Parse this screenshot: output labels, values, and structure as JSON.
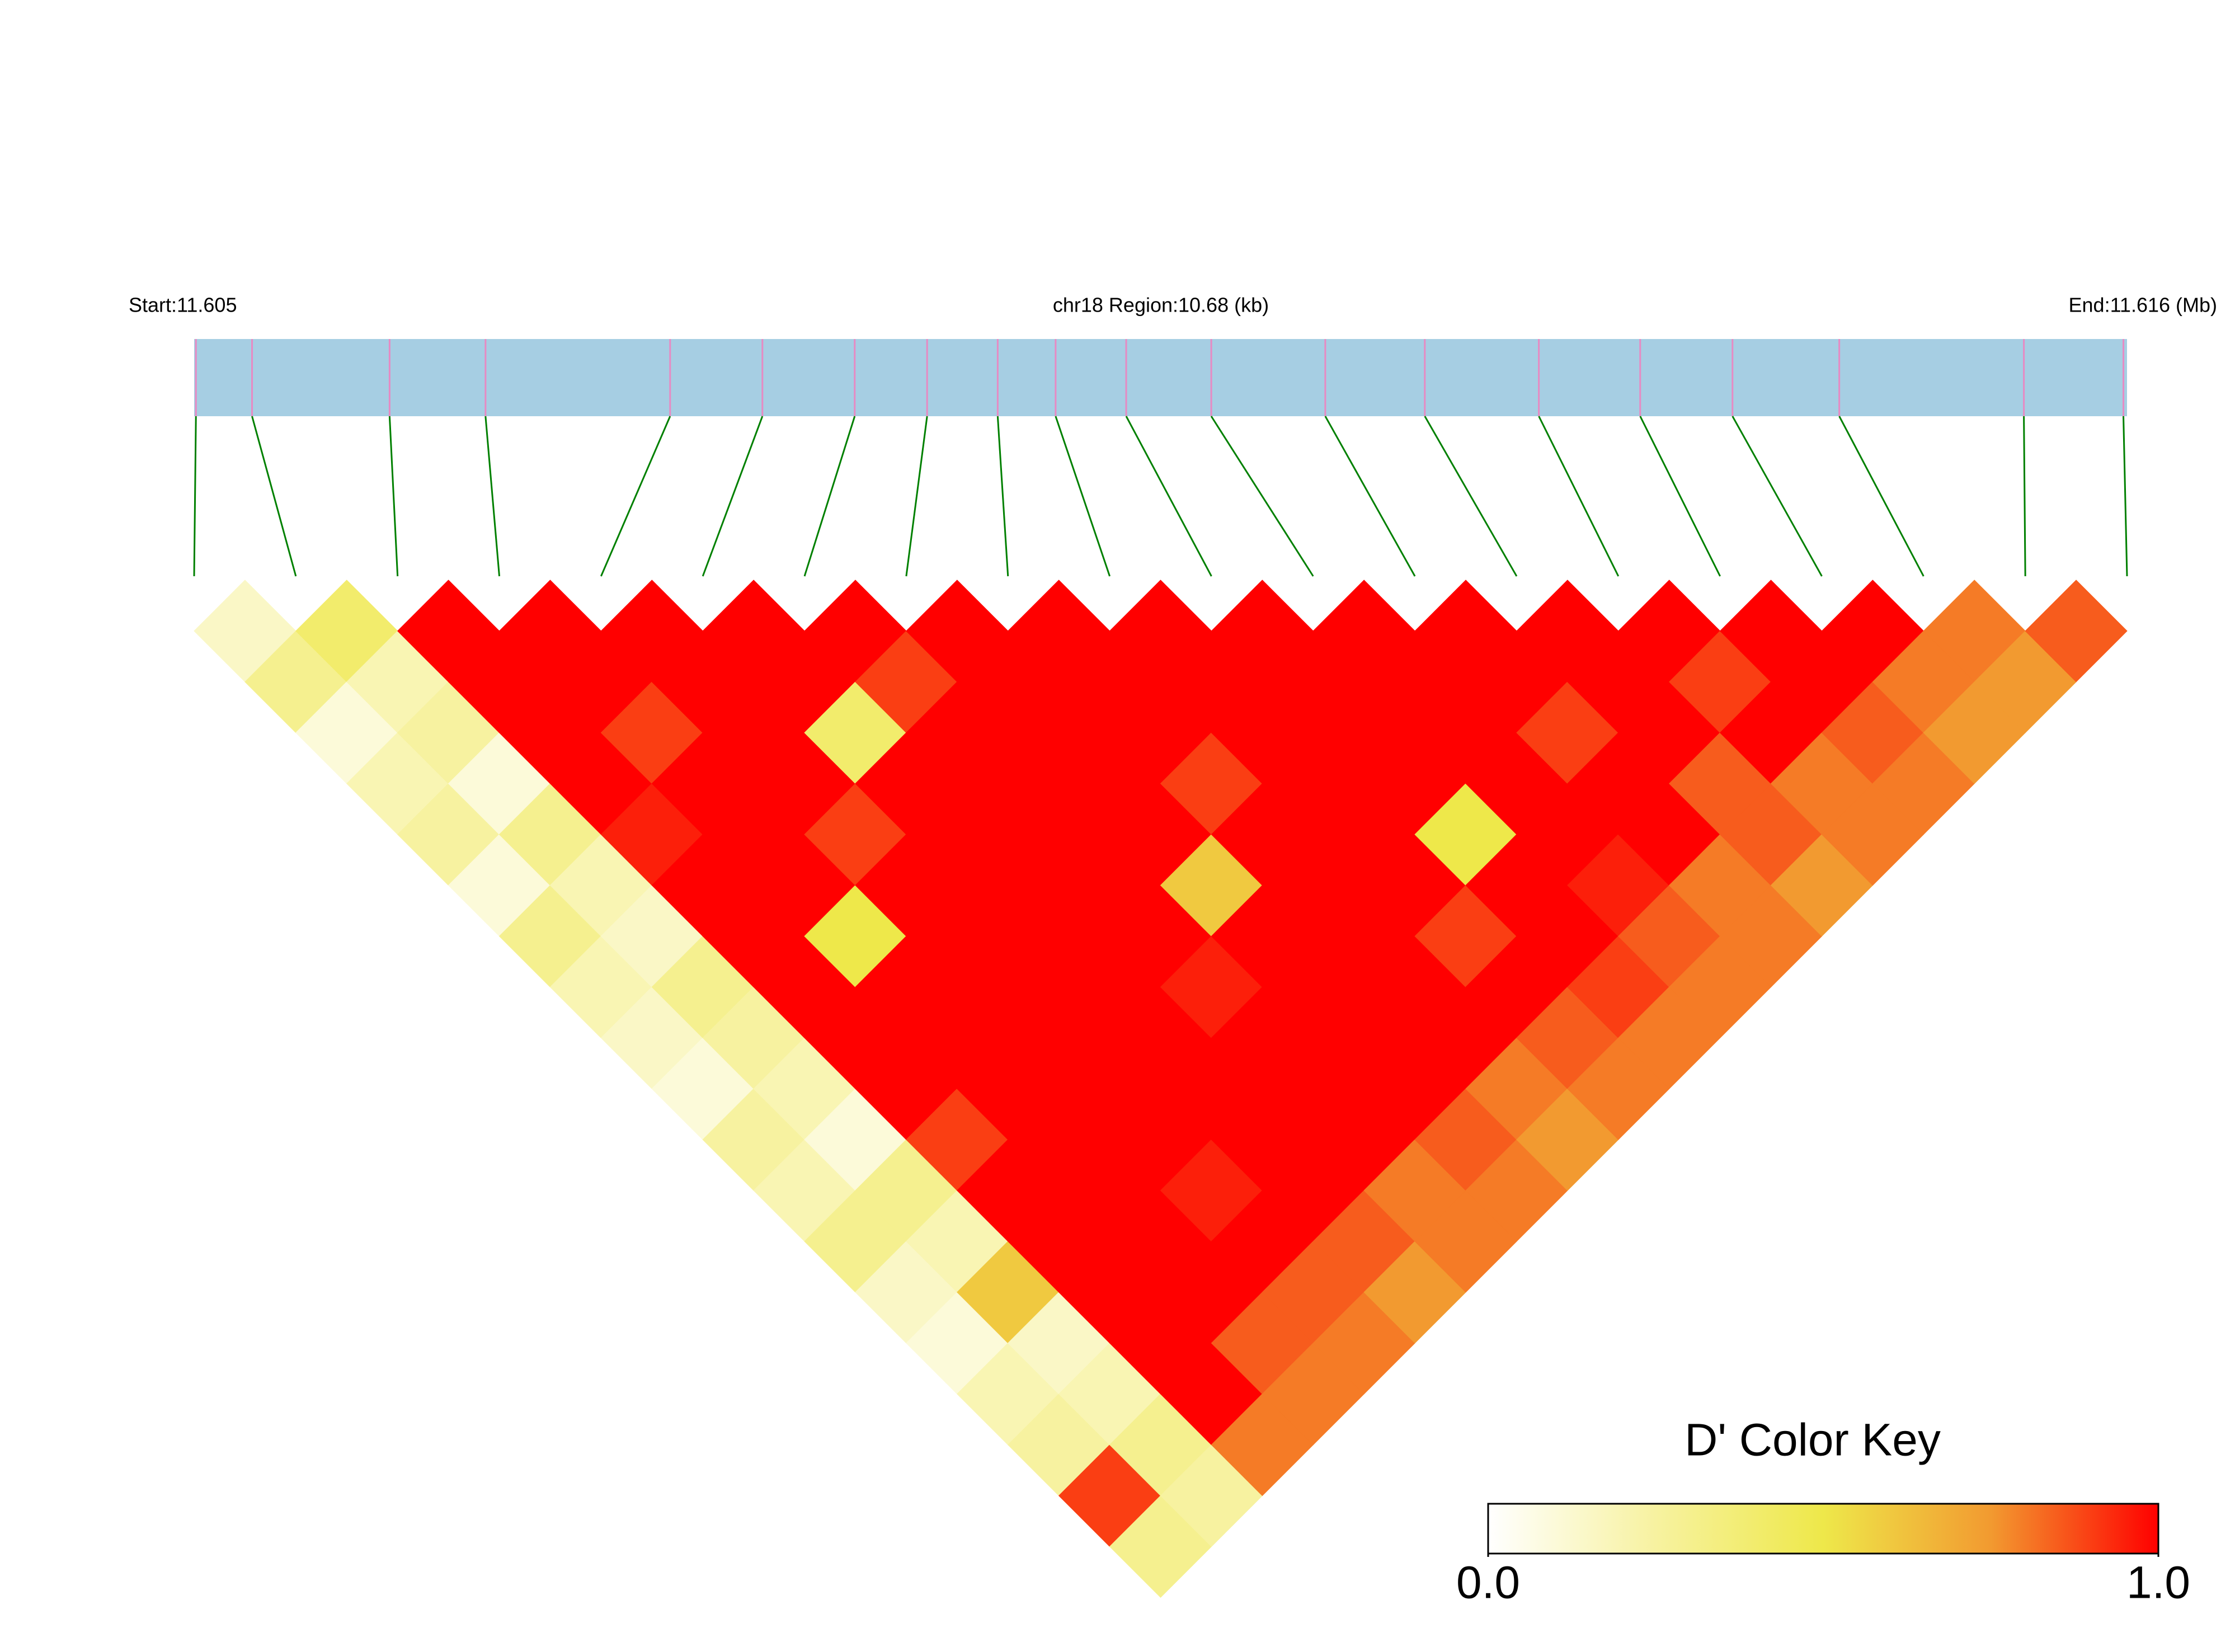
{
  "chart_data": {
    "type": "ld-heatmap",
    "start_label": "Start:11.605",
    "title": "chr18 Region:10.68 (kb)",
    "end_label": "End:11.616 (Mb)",
    "xlim": [
      11.605,
      11.61568
    ],
    "positions": [
      11.60501,
      11.60532,
      11.60608,
      11.60661,
      11.60763,
      11.60814,
      11.60865,
      11.60905,
      11.60944,
      11.60976,
      11.61015,
      11.61062,
      11.61125,
      11.6118,
      11.61243,
      11.61299,
      11.6135,
      11.61409,
      11.61511,
      11.61566
    ],
    "dprime": [
      [
        0.15,
        0.3,
        0.1,
        0.2,
        0.25,
        0.1,
        0.3,
        0.2,
        0.15,
        0.1,
        0.25,
        0.2,
        0.3,
        0.15,
        0.1,
        0.2,
        0.25,
        0.9,
        0.3
      ],
      [
        0.4,
        0.2,
        0.25,
        0.1,
        0.3,
        0.2,
        0.15,
        0.3,
        0.25,
        0.2,
        0.1,
        0.3,
        0.2,
        0.6,
        0.15,
        0.2,
        0.3,
        0.25
      ],
      [
        1,
        1,
        1,
        1,
        0.95,
        1,
        1,
        1,
        1,
        1,
        0.9,
        1,
        1,
        1,
        1,
        1,
        0.8
      ],
      [
        1,
        1,
        0.9,
        1,
        1,
        1,
        0.5,
        1,
        1,
        1,
        1,
        1,
        1,
        1,
        0.85,
        0.8
      ],
      [
        1,
        1,
        1,
        1,
        0.9,
        1,
        1,
        1,
        1,
        1,
        1,
        0.95,
        1,
        0.85,
        0.8
      ],
      [
        1,
        1,
        0.4,
        1,
        1,
        1,
        1,
        1,
        1,
        1,
        1,
        1,
        0.85,
        0.75
      ],
      [
        1,
        0.9,
        1,
        1,
        1,
        1,
        1,
        0.95,
        1,
        1,
        1,
        0.8,
        0.8
      ],
      [
        1,
        1,
        1,
        1,
        1,
        0.6,
        1,
        1,
        1,
        1,
        0.85,
        0.8
      ],
      [
        1,
        1,
        1,
        0.9,
        1,
        1,
        1,
        1,
        1,
        0.8,
        0.75
      ],
      [
        1,
        1,
        1,
        1,
        1,
        1,
        0.9,
        1,
        0.85,
        0.8
      ],
      [
        1,
        1,
        1,
        1,
        0.5,
        1,
        1,
        0.9,
        0.8
      ],
      [
        1,
        1,
        1,
        1,
        1,
        0.95,
        0.85,
        0.8
      ],
      [
        1,
        1,
        0.9,
        1,
        1,
        0.8,
        0.8
      ],
      [
        1,
        1,
        1,
        0.85,
        0.85,
        0.75
      ],
      [
        1,
        0.9,
        1,
        0.8,
        0.8
      ],
      [
        1,
        1,
        0.85,
        0.8
      ],
      [
        1,
        0.8,
        0.75
      ],
      [
        0.8,
        0.75
      ],
      [
        0.85
      ]
    ],
    "colors": [
      "#ffffff",
      "#f7f2a0",
      "#eee84a",
      "#f29a30",
      "#ff0000"
    ],
    "clim": [
      0,
      1
    ],
    "region_color": "#a6cee3",
    "snp_color": "#e78ac3",
    "connector_color": "#008000",
    "legend": {
      "title": "D' Color Key",
      "ticks": [
        {
          "value": 0,
          "label": "0.0"
        },
        {
          "value": 1,
          "label": "1.0"
        }
      ]
    }
  }
}
